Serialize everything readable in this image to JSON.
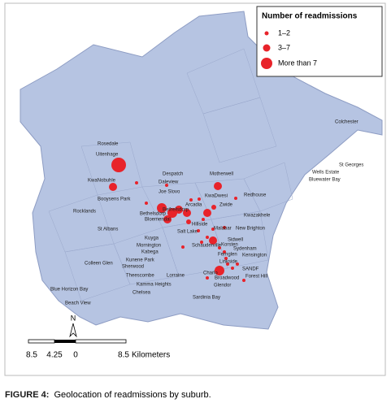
{
  "legend": {
    "title": "Number of readmissions",
    "items": [
      "1–2",
      "3–7",
      "More than 7"
    ]
  },
  "places": [
    "Colchester",
    "Rosedale",
    "Uitenhage",
    "KwaNobuhle",
    "Despatch",
    "Daleview",
    "Joe Slovo",
    "Motherwell",
    "St Georges",
    "Wells Estate",
    "Bluewater Bay",
    "Redhouse",
    "Booysens Park",
    "KwaDwesi",
    "Rocklands",
    "Bethelsdorp",
    "Arcadia",
    "Zwide",
    "Kwazakhele",
    "Bloemendal",
    "Bethelsdorp",
    "Hillside",
    "New Brighton",
    "Salt Lake",
    "St Albans",
    "Kuyga",
    "Sidwell",
    "Mornington",
    "Schauderville",
    "Korsten",
    "Sydenham",
    "Kabega",
    "Fernglen",
    "Kensington",
    "Kunene Park",
    "Sherwood",
    "Linkside",
    "Colleen Glen",
    "Theescombe",
    "Lorraine",
    "SANDF",
    "Forest Hill",
    "Blue Horizon Bay",
    "Kamma Heights",
    "Broadwood",
    "Charlo",
    "Glendor",
    "Beach View",
    "Chelsea",
    "Sardinia Bay",
    "Malabar"
  ],
  "north": "N",
  "scale": {
    "ticks": [
      "8.5",
      "4.25",
      "0",
      "8.5"
    ],
    "unit": "Kilometers"
  },
  "caption": {
    "label": "FIGURE 4:",
    "text": "Geolocation of readmissions by suburb."
  }
}
